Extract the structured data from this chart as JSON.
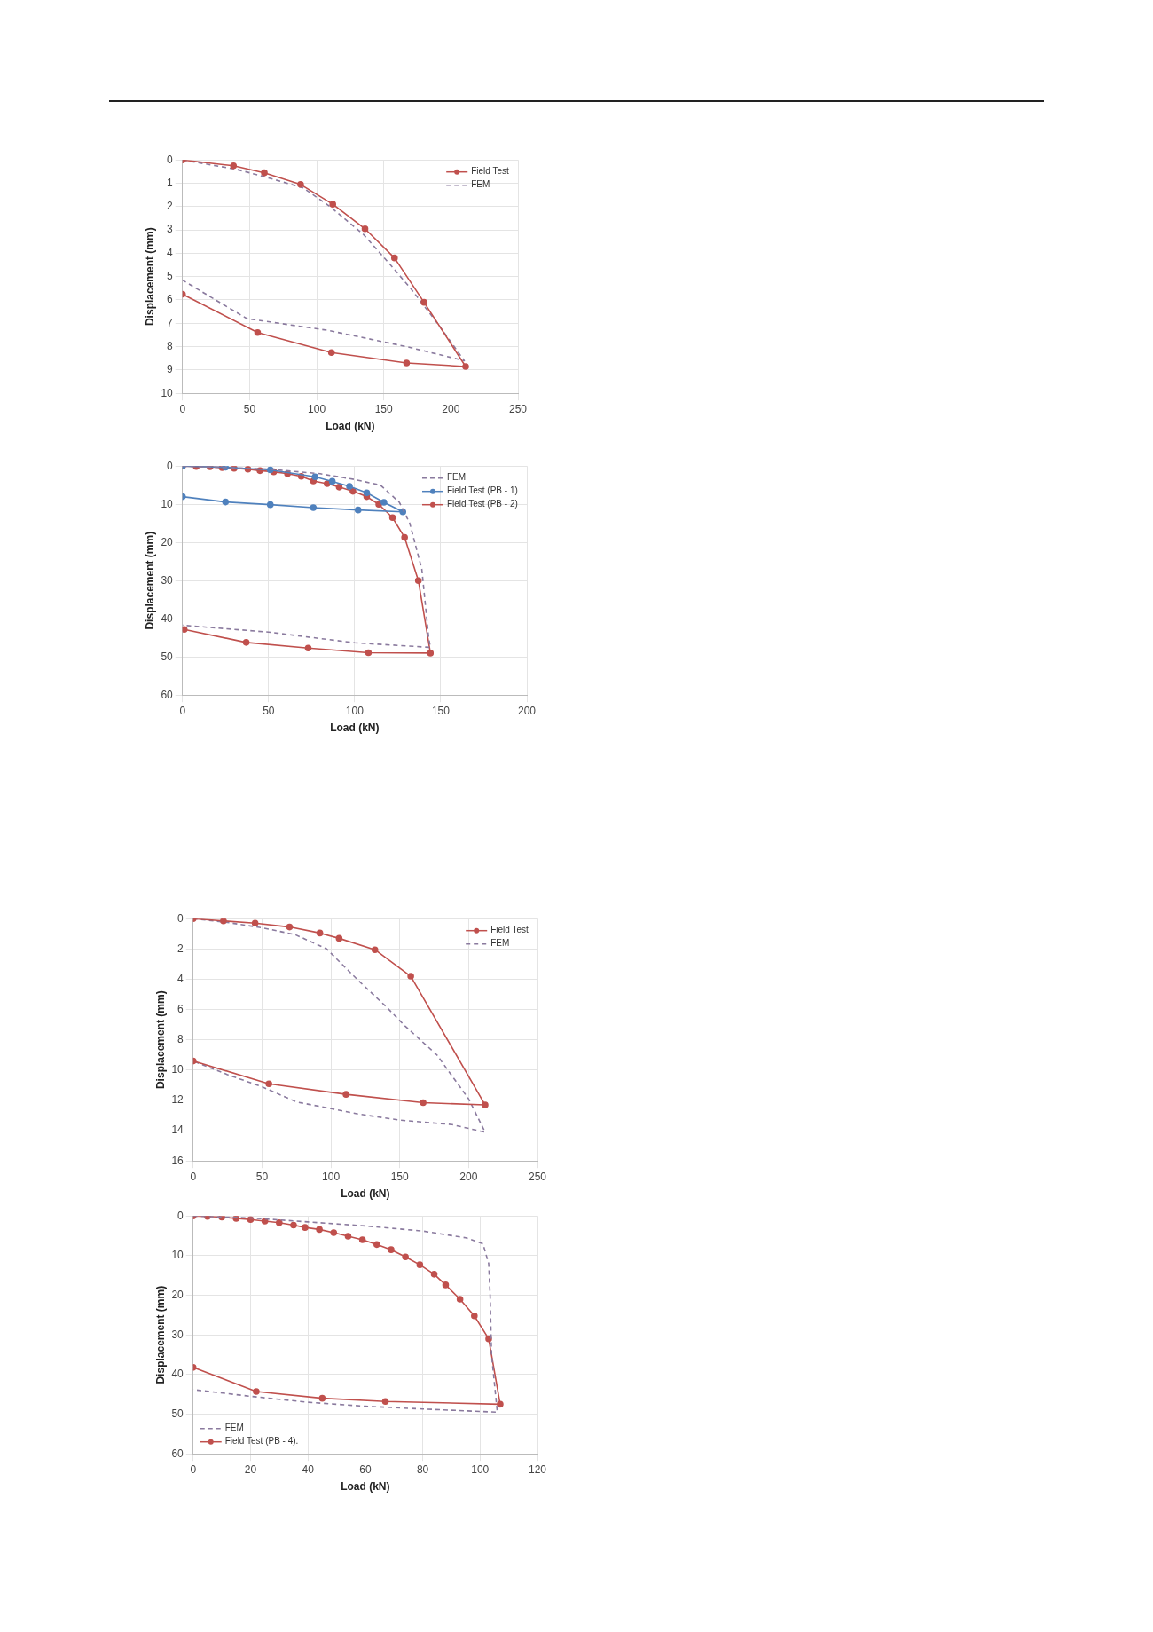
{
  "chart_data": [
    {
      "type": "line",
      "xlabel": "Load (kN)",
      "ylabel": "Displacement (mm)",
      "xlim": [
        0,
        250
      ],
      "xticks": [
        0,
        50,
        100,
        150,
        200,
        250
      ],
      "ylim": [
        10,
        0
      ],
      "yticks": [
        0,
        1,
        2,
        3,
        4,
        5,
        6,
        7,
        8,
        9,
        10
      ],
      "grid": true,
      "legend": "top right",
      "series": [
        {
          "name": "Field Test",
          "color": "#c0504d",
          "marker": "circle",
          "line_style": "solid",
          "x": [
            0,
            38,
            61,
            88,
            112,
            136,
            158,
            180,
            211,
            167,
            111,
            56,
            0
          ],
          "values": [
            0,
            0.25,
            0.55,
            1.05,
            1.9,
            2.95,
            4.2,
            6.1,
            8.85,
            8.7,
            8.25,
            7.4,
            5.75
          ]
        },
        {
          "name": "FEM",
          "color": "#8a7a9e",
          "marker": "none",
          "line_style": "dashed",
          "x": [
            0,
            40,
            60,
            90,
            110,
            135,
            155,
            170,
            190,
            210,
            167,
            108,
            48,
            0
          ],
          "values": [
            0,
            0.4,
            0.7,
            1.2,
            2.0,
            3.2,
            4.5,
            5.5,
            7.0,
            8.6,
            8.0,
            7.3,
            6.8,
            5.15
          ]
        }
      ]
    },
    {
      "type": "line",
      "xlabel": "Load (kN)",
      "ylabel": "Displacement (mm)",
      "xlim": [
        0,
        200
      ],
      "xticks": [
        0,
        50,
        100,
        150,
        200
      ],
      "ylim": [
        60,
        0
      ],
      "yticks": [
        0,
        10,
        20,
        30,
        40,
        50,
        60
      ],
      "grid": true,
      "legend": "top right",
      "series": [
        {
          "name": "FEM",
          "color": "#8a7a9e",
          "marker": "none",
          "line_style": "dashed",
          "x": [
            0,
            50,
            80,
            100,
            115,
            126,
            132,
            139,
            143,
            144,
            100,
            50,
            0
          ],
          "values": [
            0,
            0.8,
            2,
            3.5,
            5,
            9.5,
            15,
            27,
            45,
            47.5,
            46.3,
            43.5,
            41.7
          ]
        },
        {
          "name": "Field Test (PB - 1)",
          "color": "#4f81bd",
          "marker": "circle",
          "line_style": "solid",
          "x": [
            0,
            25,
            51,
            77,
            87,
            97,
            107,
            117,
            128,
            102,
            76,
            51,
            25,
            0
          ],
          "values": [
            0,
            0.3,
            1,
            2.8,
            4,
            5.3,
            7,
            9.5,
            12,
            11.5,
            10.9,
            10.1,
            9.4,
            8
          ]
        },
        {
          "name": "Field Test (PB - 2)",
          "color": "#c0504d",
          "marker": "circle",
          "line_style": "solid",
          "x": [
            0,
            8,
            16,
            23,
            30,
            38,
            45,
            53,
            61,
            69,
            76,
            84,
            91,
            99,
            107,
            114,
            122,
            129,
            137,
            144,
            108,
            73,
            37,
            1
          ],
          "values": [
            0,
            0.1,
            0.2,
            0.4,
            0.6,
            0.8,
            1.2,
            1.5,
            2,
            2.7,
            3.9,
            4.6,
            5.5,
            6.6,
            8,
            10,
            13.5,
            18.7,
            30,
            49,
            48.9,
            47.7,
            46.2,
            42.8
          ]
        }
      ]
    },
    {
      "type": "line",
      "xlabel": "Load (kN)",
      "ylabel": "Displacement (mm)",
      "xlim": [
        0,
        250
      ],
      "xticks": [
        0,
        50,
        100,
        150,
        200,
        250
      ],
      "ylim": [
        16,
        0
      ],
      "yticks": [
        0,
        2,
        4,
        6,
        8,
        10,
        12,
        14,
        16
      ],
      "grid": true,
      "legend": "top right",
      "series": [
        {
          "name": "Field Test",
          "color": "#c0504d",
          "marker": "circle",
          "line_style": "solid",
          "x": [
            0,
            22,
            45,
            70,
            92,
            106,
            132,
            158,
            212,
            167,
            111,
            55,
            0
          ],
          "values": [
            0,
            0.15,
            0.3,
            0.55,
            0.95,
            1.3,
            2.05,
            3.8,
            12.3,
            12.15,
            11.6,
            10.9,
            9.4
          ]
        },
        {
          "name": "FEM",
          "color": "#8a7a9e",
          "marker": "none",
          "line_style": "dashed",
          "x": [
            0,
            25,
            50,
            74,
            97,
            119,
            140,
            154,
            177,
            200,
            212,
            188,
            150,
            120,
            75,
            50,
            25,
            0
          ],
          "values": [
            0,
            0.25,
            0.6,
            1.05,
            2,
            4,
            5.8,
            7.1,
            9,
            11.9,
            14.1,
            13.6,
            13.3,
            12.9,
            12.1,
            11.1,
            10.3,
            9.4
          ]
        }
      ]
    },
    {
      "type": "line",
      "xlabel": "Load (kN)",
      "ylabel": "Displacement (mm)",
      "xlim": [
        0,
        120
      ],
      "xticks": [
        0,
        20,
        40,
        60,
        80,
        100,
        120
      ],
      "ylim": [
        60,
        0
      ],
      "yticks": [
        0,
        10,
        20,
        30,
        40,
        50,
        60
      ],
      "grid": true,
      "legend": "bottom left",
      "series": [
        {
          "name": "FEM",
          "color": "#8a7a9e",
          "marker": "none",
          "line_style": "dashed",
          "x": [
            0,
            20,
            40,
            60,
            80,
            95,
            101,
            103,
            103.5,
            104,
            106,
            80,
            60,
            40,
            20,
            0
          ],
          "values": [
            0,
            0.5,
            1.5,
            2.5,
            3.8,
            5.5,
            7,
            12,
            20,
            35,
            49.5,
            48.7,
            48,
            47,
            45.5,
            43.8
          ]
        },
        {
          "name": "Field Test (PB - 4).",
          "color": "#c0504d",
          "marker": "circle",
          "line_style": "solid",
          "x": [
            0,
            5,
            10,
            15,
            20,
            25,
            30,
            35,
            39,
            44,
            49,
            54,
            59,
            64,
            69,
            74,
            79,
            84,
            88,
            93,
            98,
            103,
            107,
            67,
            45,
            22,
            0
          ],
          "values": [
            0,
            0.1,
            0.3,
            0.6,
            0.9,
            1.3,
            1.7,
            2.3,
            2.9,
            3.4,
            4.2,
            5.1,
            6,
            7.2,
            8.5,
            10.3,
            12.3,
            14.7,
            17.4,
            21,
            25.2,
            31,
            47.5,
            46.8,
            46,
            44.3,
            38.2
          ]
        }
      ]
    }
  ]
}
